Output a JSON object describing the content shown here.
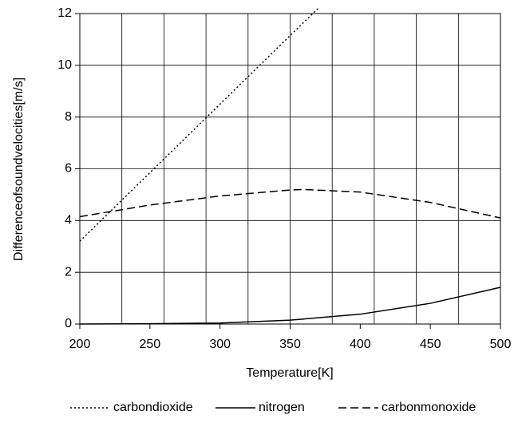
{
  "chart_data": {
    "type": "line",
    "xlabel": "Temperature[K]",
    "ylabel": "Differenceofsoundvelocities[m/s]",
    "xlim": [
      200,
      500
    ],
    "ylim": [
      0,
      12
    ],
    "xticks": [
      200,
      250,
      300,
      350,
      400,
      450,
      500
    ],
    "yticks": [
      0,
      2,
      4,
      6,
      8,
      10,
      12
    ],
    "xgrid": [
      200,
      230,
      260,
      290,
      320,
      350,
      380,
      410,
      440,
      470,
      500
    ],
    "grid": true,
    "legend": "bottom",
    "series": [
      {
        "name": "carbondioxide",
        "color": "#000000",
        "dash": "dotted",
        "x": [
          200,
          250,
          300,
          350,
          370
        ],
        "values": [
          3.2,
          5.85,
          8.5,
          11.15,
          12.2
        ]
      },
      {
        "name": "nitrogen",
        "color": "#000000",
        "dash": "solid",
        "x": [
          200,
          250,
          300,
          350,
          400,
          450,
          500
        ],
        "values": [
          0,
          0.01,
          0.04,
          0.15,
          0.38,
          0.8,
          1.42
        ]
      },
      {
        "name": "carbonmonoxide",
        "color": "#000000",
        "dash": "dashed",
        "x": [
          200,
          250,
          300,
          350,
          360,
          400,
          450,
          500
        ],
        "values": [
          4.15,
          4.6,
          4.95,
          5.18,
          5.2,
          5.1,
          4.7,
          4.1
        ]
      }
    ]
  }
}
